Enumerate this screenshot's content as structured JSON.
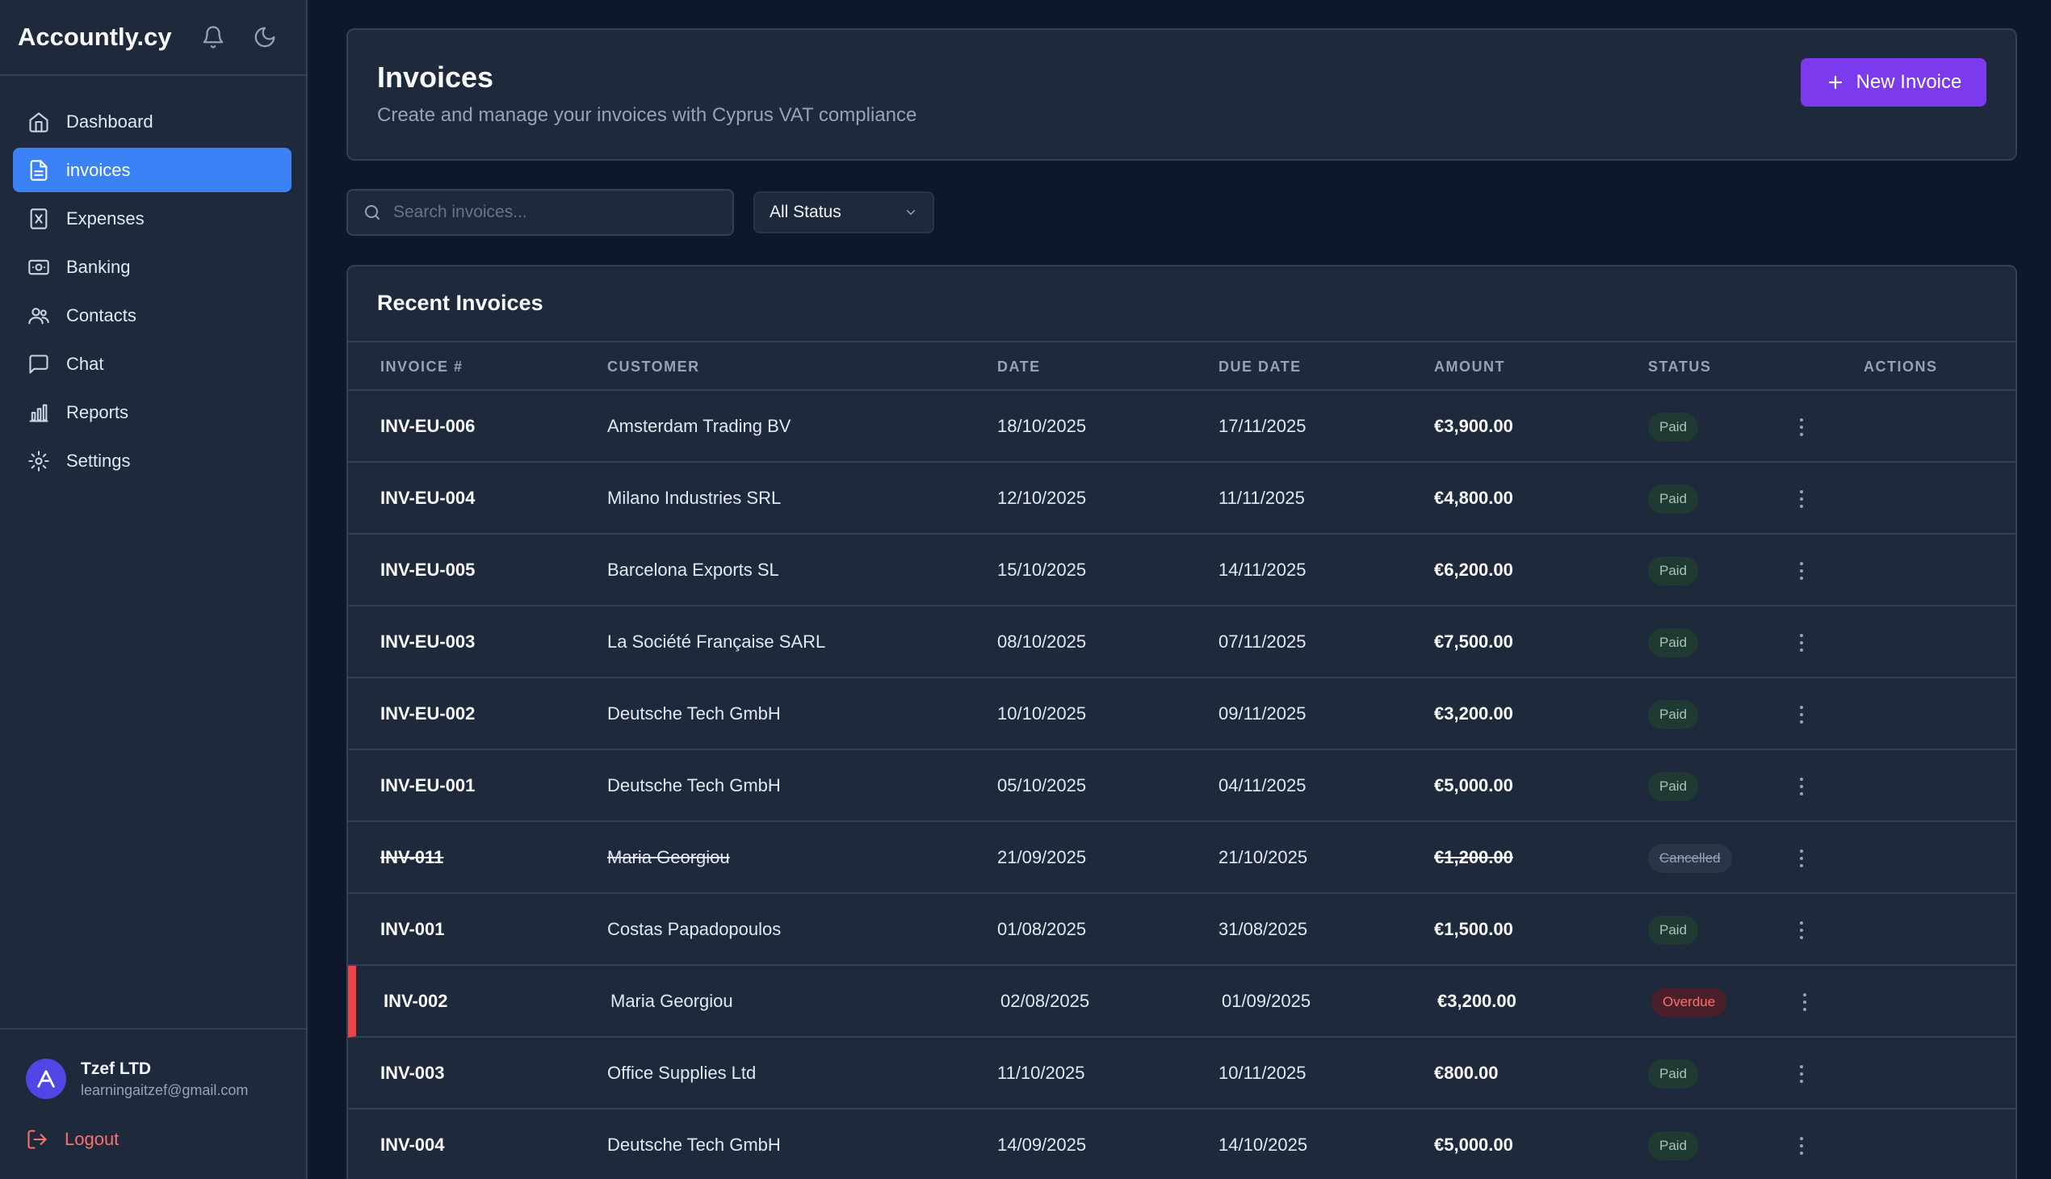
{
  "app": {
    "brand": "Accountly.cy"
  },
  "sidebar": {
    "items": [
      {
        "label": "Dashboard",
        "icon": "home-icon"
      },
      {
        "label": "invoices",
        "icon": "file-icon",
        "active": true
      },
      {
        "label": "Expenses",
        "icon": "receipt-icon"
      },
      {
        "label": "Banking",
        "icon": "banknote-icon"
      },
      {
        "label": "Contacts",
        "icon": "users-icon"
      },
      {
        "label": "Chat",
        "icon": "chat-icon"
      },
      {
        "label": "Reports",
        "icon": "bar-chart-icon"
      },
      {
        "label": "Settings",
        "icon": "gear-icon"
      }
    ],
    "user": {
      "name": "Tzef LTD",
      "email": "learningaitzef@gmail.com"
    },
    "logout_label": "Logout"
  },
  "header": {
    "title": "Invoices",
    "subtitle": "Create and manage your invoices with Cyprus VAT compliance",
    "new_button": "New Invoice"
  },
  "filters": {
    "search_placeholder": "Search invoices...",
    "status_selected": "All Status"
  },
  "table": {
    "title": "Recent Invoices",
    "columns": [
      "INVOICE #",
      "CUSTOMER",
      "DATE",
      "DUE DATE",
      "AMOUNT",
      "STATUS",
      "ACTIONS"
    ],
    "rows": [
      {
        "invoice": "INV-EU-006",
        "customer": "Amsterdam Trading BV",
        "date": "18/10/2025",
        "due": "17/11/2025",
        "amount": "€3,900.00",
        "status": "Paid"
      },
      {
        "invoice": "INV-EU-004",
        "customer": "Milano Industries SRL",
        "date": "12/10/2025",
        "due": "11/11/2025",
        "amount": "€4,800.00",
        "status": "Paid"
      },
      {
        "invoice": "INV-EU-005",
        "customer": "Barcelona Exports SL",
        "date": "15/10/2025",
        "due": "14/11/2025",
        "amount": "€6,200.00",
        "status": "Paid"
      },
      {
        "invoice": "INV-EU-003",
        "customer": "La Société Française SARL",
        "date": "08/10/2025",
        "due": "07/11/2025",
        "amount": "€7,500.00",
        "status": "Paid"
      },
      {
        "invoice": "INV-EU-002",
        "customer": "Deutsche Tech GmbH",
        "date": "10/10/2025",
        "due": "09/11/2025",
        "amount": "€3,200.00",
        "status": "Paid"
      },
      {
        "invoice": "INV-EU-001",
        "customer": "Deutsche Tech GmbH",
        "date": "05/10/2025",
        "due": "04/11/2025",
        "amount": "€5,000.00",
        "status": "Paid"
      },
      {
        "invoice": "INV-011",
        "customer": "Maria Georgiou",
        "date": "21/09/2025",
        "due": "21/10/2025",
        "amount": "€1,200.00",
        "status": "Cancelled"
      },
      {
        "invoice": "INV-001",
        "customer": "Costas Papadopoulos",
        "date": "01/08/2025",
        "due": "31/08/2025",
        "amount": "€1,500.00",
        "status": "Paid"
      },
      {
        "invoice": "INV-002",
        "customer": "Maria Georgiou",
        "date": "02/08/2025",
        "due": "01/09/2025",
        "amount": "€3,200.00",
        "status": "Overdue"
      },
      {
        "invoice": "INV-003",
        "customer": "Office Supplies Ltd",
        "date": "11/10/2025",
        "due": "10/11/2025",
        "amount": "€800.00",
        "status": "Paid"
      },
      {
        "invoice": "INV-004",
        "customer": "Deutsche Tech GmbH",
        "date": "14/09/2025",
        "due": "14/10/2025",
        "amount": "€5,000.00",
        "status": "Paid"
      }
    ]
  },
  "colors": {
    "accent": "#3b82f6",
    "primary_button": "#7c3aed",
    "overdue": "#ef4444",
    "paid_badge": "#1e3a32"
  }
}
